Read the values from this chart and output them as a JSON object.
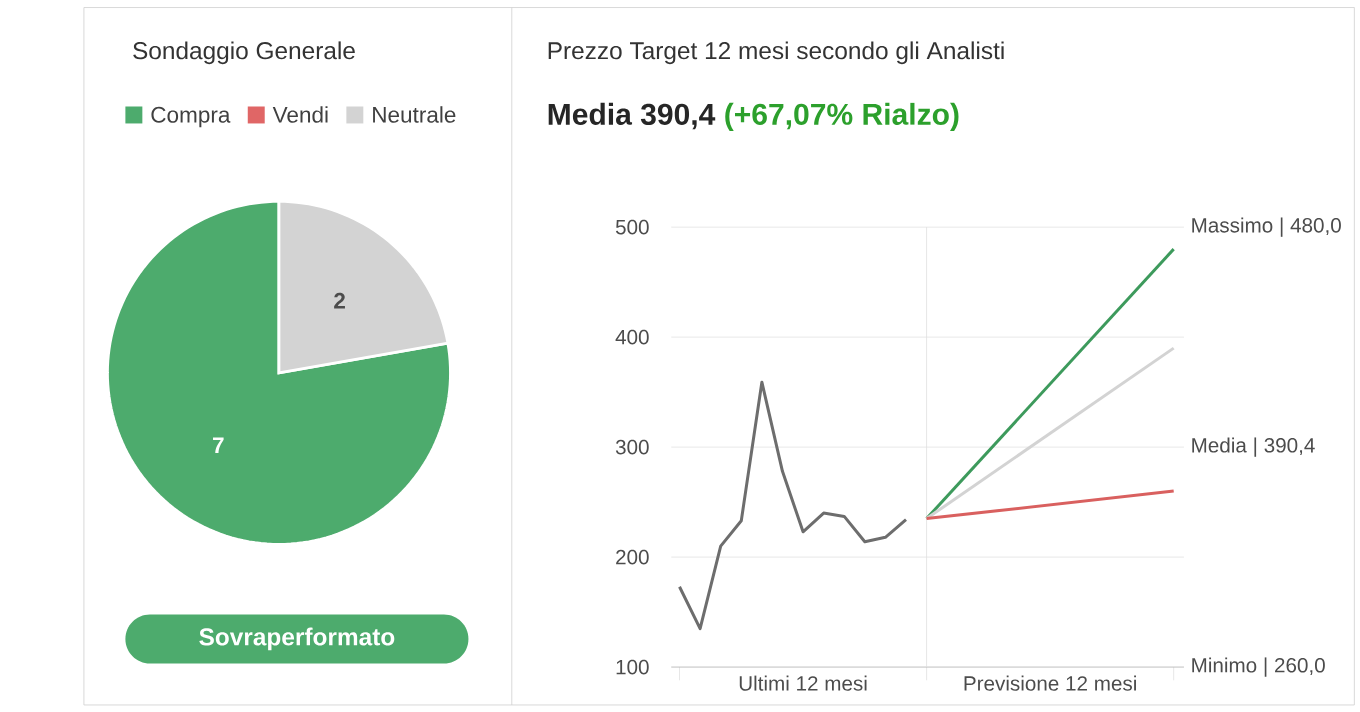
{
  "chart_data": [
    {
      "type": "pie",
      "title": "Sondaggio Generale",
      "categories": [
        "Compra",
        "Vendi",
        "Neutrale"
      ],
      "values": [
        7,
        0,
        2
      ],
      "colors": [
        "#4dab6d",
        "#e06666",
        "#d3d3d3"
      ],
      "value_labels": [
        "7",
        null,
        "2"
      ],
      "legend": "top",
      "annotations": [
        "Sovraperformato"
      ]
    },
    {
      "type": "line",
      "title": "Prezzo Target 12 mesi secondo gli Analisti",
      "subtitle": "Media 390,4",
      "annotations": [
        "(+67,07% Rialzo)",
        "Massimo | 480,0",
        "Media | 390,4",
        "Minimo | 260,0"
      ],
      "categories": [
        null,
        null,
        null,
        null,
        null,
        null,
        "Ultimi 12 mesi",
        null,
        null,
        null,
        null,
        null,
        null,
        null,
        null,
        null,
        null,
        null,
        "Previsione 12 mesi",
        null,
        null,
        null,
        null,
        null,
        null
      ],
      "series": [
        {
          "color": "#6d6d6d",
          "values": [
            173,
            135,
            210,
            233,
            359,
            278,
            223,
            240,
            237,
            214,
            218,
            234,
            null,
            null,
            null,
            null,
            null,
            null,
            null,
            null,
            null,
            null,
            null,
            null,
            null
          ]
        },
        {
          "color": "#3d9a5c",
          "values": [
            null,
            null,
            null,
            null,
            null,
            null,
            null,
            null,
            null,
            null,
            null,
            null,
            235,
            null,
            null,
            null,
            null,
            null,
            null,
            null,
            null,
            null,
            null,
            null,
            480
          ]
        },
        {
          "color": "#d3d3d3",
          "values": [
            null,
            null,
            null,
            null,
            null,
            null,
            null,
            null,
            null,
            null,
            null,
            null,
            235,
            null,
            null,
            null,
            null,
            null,
            null,
            null,
            null,
            null,
            null,
            null,
            390
          ]
        },
        {
          "color": "#d9605f",
          "values": [
            null,
            null,
            null,
            null,
            null,
            null,
            null,
            null,
            null,
            null,
            null,
            null,
            235,
            null,
            null,
            null,
            null,
            null,
            null,
            null,
            null,
            null,
            null,
            null,
            260
          ]
        }
      ],
      "ylim": [
        100,
        500
      ],
      "yticks": [
        100,
        200,
        300,
        400,
        500
      ],
      "grid": "y"
    }
  ]
}
